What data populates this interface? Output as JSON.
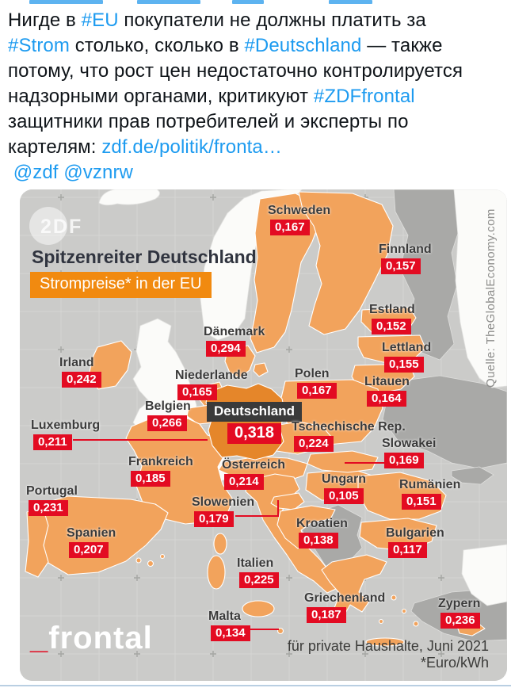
{
  "tweet": {
    "lines": [
      {
        "segments": [
          {
            "text": "Нигде в "
          },
          {
            "text": "#EU",
            "link": true
          },
          {
            "text": " покупатели не должны платить за"
          }
        ]
      },
      {
        "segments": [
          {
            "text": "#Strom",
            "link": true
          },
          {
            "text": " столько, сколько в "
          },
          {
            "text": "#Deutschland",
            "link": true
          },
          {
            "text": " — также"
          }
        ]
      },
      {
        "segments": [
          {
            "text": "потому, что рост цен недостаточно контролируется"
          }
        ]
      },
      {
        "segments": [
          {
            "text": "надзорными органами, критикуют "
          },
          {
            "text": "#ZDFfrontal",
            "link": true
          }
        ]
      },
      {
        "segments": [
          {
            "text": "защитники прав потребителей и эксперты по"
          }
        ]
      },
      {
        "segments": [
          {
            "text": "картелям: "
          },
          {
            "text": "zdf.de/politik/fronta…",
            "link": true
          }
        ]
      },
      {
        "segments": [
          {
            "text": "@zdf",
            "link": true
          },
          {
            "text": " "
          },
          {
            "text": "@vznrw",
            "link": true
          }
        ]
      }
    ]
  },
  "map": {
    "watermark": "2DF",
    "title": "Spitzenreiter Deutschland",
    "subtitle": "Strompreise* in der EU",
    "source": "Quelle: TheGlobalEconomy.com",
    "brand": {
      "prefix": "_",
      "name": "frontal"
    },
    "footnote_line1": "für private Haushalte, Juni 2021",
    "footnote_line2": "*Euro/kWh",
    "colors": {
      "zdf_red": "#e30b22",
      "eu_orange": "#f2a35c",
      "germany_orange": "#e5862a",
      "header_orange": "#f18a10",
      "non_eu_gray": "#a9a9a7",
      "sea_gray": "#cbcbc9",
      "tweet_link_blue": "#1d9bf0"
    },
    "countries": [
      {
        "name": "Schweden",
        "price": "0,167"
      },
      {
        "name": "Finnland",
        "price": "0,157"
      },
      {
        "name": "Estland",
        "price": "0,152"
      },
      {
        "name": "Lettland",
        "price": "0,155"
      },
      {
        "name": "Litauen",
        "price": "0,164"
      },
      {
        "name": "Dänemark",
        "price": "0,294"
      },
      {
        "name": "Irland",
        "price": "0,242"
      },
      {
        "name": "Niederlande",
        "price": "0,165"
      },
      {
        "name": "Polen",
        "price": "0,167"
      },
      {
        "name": "Belgien",
        "price": "0,266"
      },
      {
        "name": "Deutschland",
        "price": "0,318",
        "highlight": true
      },
      {
        "name": "Luxemburg",
        "price": "0,211"
      },
      {
        "name": "Tschechische Rep.",
        "price": "0,224"
      },
      {
        "name": "Slowakei",
        "price": "0,169"
      },
      {
        "name": "Frankreich",
        "price": "0,185"
      },
      {
        "name": "Österreich",
        "price": "0,214"
      },
      {
        "name": "Ungarn",
        "price": "0,105"
      },
      {
        "name": "Rumänien",
        "price": "0,151"
      },
      {
        "name": "Portugal",
        "price": "0,231"
      },
      {
        "name": "Slowenien",
        "price": "0,179"
      },
      {
        "name": "Spanien",
        "price": "0,207"
      },
      {
        "name": "Kroatien",
        "price": "0,138"
      },
      {
        "name": "Bulgarien",
        "price": "0,117"
      },
      {
        "name": "Italien",
        "price": "0,225"
      },
      {
        "name": "Malta",
        "price": "0,134"
      },
      {
        "name": "Griechenland",
        "price": "0,187"
      },
      {
        "name": "Zypern",
        "price": "0,236"
      }
    ]
  },
  "chart_data": {
    "type": "table",
    "title": "Spitzenreiter Deutschland — Strompreise* in der EU",
    "unit": "Euro/kWh",
    "note": "für private Haushalte, Juni 2021",
    "source": "TheGlobalEconomy.com",
    "categories": [
      "Schweden",
      "Finnland",
      "Estland",
      "Lettland",
      "Litauen",
      "Dänemark",
      "Irland",
      "Niederlande",
      "Polen",
      "Belgien",
      "Deutschland",
      "Luxemburg",
      "Tschechische Rep.",
      "Slowakei",
      "Frankreich",
      "Österreich",
      "Ungarn",
      "Rumänien",
      "Portugal",
      "Slowenien",
      "Spanien",
      "Kroatien",
      "Bulgarien",
      "Italien",
      "Malta",
      "Griechenland",
      "Zypern"
    ],
    "values": [
      0.167,
      0.157,
      0.152,
      0.155,
      0.164,
      0.294,
      0.242,
      0.165,
      0.167,
      0.266,
      0.318,
      0.211,
      0.224,
      0.169,
      0.185,
      0.214,
      0.105,
      0.151,
      0.231,
      0.179,
      0.207,
      0.138,
      0.117,
      0.225,
      0.134,
      0.187,
      0.236
    ]
  }
}
